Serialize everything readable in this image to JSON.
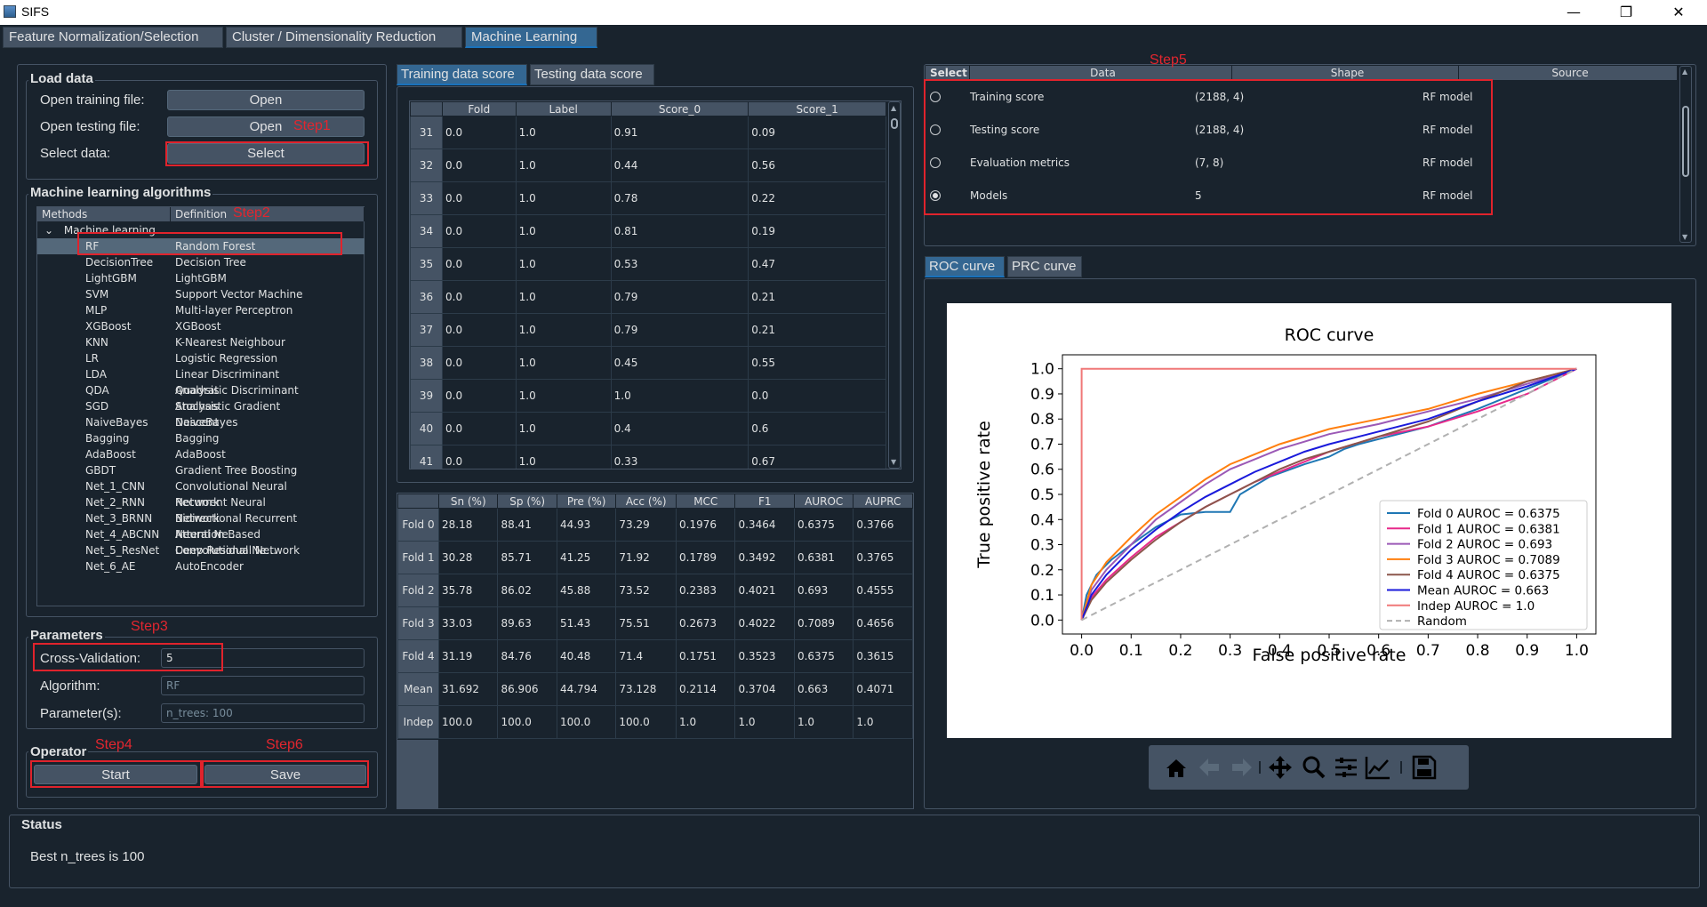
{
  "window": {
    "title": "SIFS",
    "minimize": "—",
    "restore": "❐",
    "close": "✕"
  },
  "tabs": [
    "Feature Normalization/Selection",
    "Cluster / Dimensionality Reduction",
    "Machine Learning"
  ],
  "load": {
    "title": "Load data",
    "train_label": "Open training file:",
    "test_label": "Open testing file:",
    "select_label": "Select data:",
    "open1": "Open",
    "open2": "Open",
    "select": "Select"
  },
  "steps": {
    "s1": "Step1",
    "s2": "Step2",
    "s3": "Step3",
    "s4": "Step4",
    "s5": "Step5",
    "s6": "Step6"
  },
  "ml": {
    "title": "Machine learning algorithms",
    "col1": "Methods",
    "col2": "Definition",
    "root": "Machine learning ...",
    "items": [
      [
        "RF",
        "Random Forest"
      ],
      [
        "DecisionTree",
        "Decision Tree"
      ],
      [
        "LightGBM",
        "LightGBM"
      ],
      [
        "SVM",
        "Support Vector Machine"
      ],
      [
        "MLP",
        "Multi-layer Perceptron"
      ],
      [
        "XGBoost",
        "XGBoost"
      ],
      [
        "KNN",
        "K-Nearest Neighbour"
      ],
      [
        "LR",
        "Logistic Regression"
      ],
      [
        "LDA",
        "Linear Discriminant Analysis"
      ],
      [
        "QDA",
        "Quadratic Discriminant Analysis"
      ],
      [
        "SGD",
        "Stochastic Gradient Descent"
      ],
      [
        "NaiveBayes",
        "NaiveBayes"
      ],
      [
        "Bagging",
        "Bagging"
      ],
      [
        "AdaBoost",
        "AdaBoost"
      ],
      [
        "GBDT",
        "Gradient Tree Boosting"
      ],
      [
        "Net_1_CNN",
        "Convolutional Neural Network"
      ],
      [
        "Net_2_RNN",
        "Recurrent Neural Network"
      ],
      [
        "Net_3_BRNN",
        "Bidirectional Recurrent Neural Ne..."
      ],
      [
        "Net_4_ABCNN",
        "Attention Based Convolutional Ne..."
      ],
      [
        "Net_5_ResNet",
        "Deep Residual Network"
      ],
      [
        "Net_6_AE",
        "AutoEncoder"
      ]
    ]
  },
  "params": {
    "title": "Parameters",
    "cv_label": "Cross-Validation:",
    "cv_value": "5",
    "alg_label": "Algorithm:",
    "alg_value": "RF",
    "par_label": "Parameter(s):",
    "par_value": "n_trees: 100"
  },
  "operator": {
    "title": "Operator",
    "start": "Start",
    "save": "Save"
  },
  "status": {
    "title": "Status",
    "text": "Best n_trees is 100"
  },
  "score_tabs": [
    "Training data score",
    "Testing data score"
  ],
  "score_table": {
    "headers": [
      "Fold",
      "Label",
      "Score_0",
      "Score_1"
    ],
    "rows": [
      [
        "31",
        "0.0",
        "1.0",
        "0.91",
        "0.09"
      ],
      [
        "32",
        "0.0",
        "1.0",
        "0.44",
        "0.56"
      ],
      [
        "33",
        "0.0",
        "1.0",
        "0.78",
        "0.22"
      ],
      [
        "34",
        "0.0",
        "1.0",
        "0.81",
        "0.19"
      ],
      [
        "35",
        "0.0",
        "1.0",
        "0.53",
        "0.47"
      ],
      [
        "36",
        "0.0",
        "1.0",
        "0.79",
        "0.21"
      ],
      [
        "37",
        "0.0",
        "1.0",
        "0.79",
        "0.21"
      ],
      [
        "38",
        "0.0",
        "1.0",
        "0.45",
        "0.55"
      ],
      [
        "39",
        "0.0",
        "1.0",
        "1.0",
        "0.0"
      ],
      [
        "40",
        "0.0",
        "1.0",
        "0.4",
        "0.6"
      ],
      [
        "41",
        "0.0",
        "1.0",
        "0.33",
        "0.67"
      ]
    ]
  },
  "metrics": {
    "headers": [
      "Sn (%)",
      "Sp (%)",
      "Pre (%)",
      "Acc (%)",
      "MCC",
      "F1",
      "AUROC",
      "AUPRC"
    ],
    "rows": [
      [
        "Fold 0",
        "28.18",
        "88.41",
        "44.93",
        "73.29",
        "0.1976",
        "0.3464",
        "0.6375",
        "0.3766"
      ],
      [
        "Fold 1",
        "30.28",
        "85.71",
        "41.25",
        "71.92",
        "0.1789",
        "0.3492",
        "0.6381",
        "0.3765"
      ],
      [
        "Fold 2",
        "35.78",
        "86.02",
        "45.88",
        "73.52",
        "0.2383",
        "0.4021",
        "0.693",
        "0.4555"
      ],
      [
        "Fold 3",
        "33.03",
        "89.63",
        "51.43",
        "75.51",
        "0.2673",
        "0.4022",
        "0.7089",
        "0.4656"
      ],
      [
        "Fold 4",
        "31.19",
        "84.76",
        "40.48",
        "71.4",
        "0.1751",
        "0.3523",
        "0.6375",
        "0.3615"
      ],
      [
        "Mean",
        "31.692",
        "86.906",
        "44.794",
        "73.128",
        "0.2114",
        "0.3704",
        "0.663",
        "0.4071"
      ],
      [
        "Indep",
        "100.0",
        "100.0",
        "100.0",
        "100.0",
        "1.0",
        "1.0",
        "1.0",
        "1.0"
      ]
    ]
  },
  "data_table": {
    "headers": [
      "Select",
      "Data",
      "Shape",
      "Source"
    ],
    "rows": [
      {
        "selected": false,
        "data": "Training score",
        "shape": "(2188, 4)",
        "source": "RF model"
      },
      {
        "selected": false,
        "data": "Testing score",
        "shape": "(2188, 4)",
        "source": "RF model"
      },
      {
        "selected": false,
        "data": "Evaluation metrics",
        "shape": "(7, 8)",
        "source": "RF model"
      },
      {
        "selected": true,
        "data": "Models",
        "shape": "5",
        "source": "RF model"
      }
    ]
  },
  "curve_tabs": [
    "ROC curve",
    "PRC curve"
  ],
  "chart_data": {
    "type": "line",
    "title": "ROC curve",
    "xlabel": "False positive rate",
    "ylabel": "True positive rate",
    "xlim": [
      0,
      1
    ],
    "ylim": [
      0,
      1
    ],
    "xticks": [
      "0.0",
      "0.1",
      "0.2",
      "0.3",
      "0.4",
      "0.5",
      "0.6",
      "0.7",
      "0.8",
      "0.9",
      "1.0"
    ],
    "yticks": [
      "0.0",
      "0.1",
      "0.2",
      "0.3",
      "0.4",
      "0.5",
      "0.6",
      "0.7",
      "0.8",
      "0.9",
      "1.0"
    ],
    "legend_position": "lower-right",
    "series": [
      {
        "name": "Fold 0 AUROC = 0.6375",
        "color": "#1f77b4",
        "points": [
          [
            0,
            0
          ],
          [
            0.01,
            0.1
          ],
          [
            0.03,
            0.18
          ],
          [
            0.06,
            0.24
          ],
          [
            0.1,
            0.3
          ],
          [
            0.15,
            0.37
          ],
          [
            0.2,
            0.42
          ],
          [
            0.25,
            0.43
          ],
          [
            0.3,
            0.43
          ],
          [
            0.32,
            0.5
          ],
          [
            0.38,
            0.57
          ],
          [
            0.45,
            0.62
          ],
          [
            0.5,
            0.65
          ],
          [
            0.53,
            0.68
          ],
          [
            0.56,
            0.7
          ],
          [
            0.6,
            0.72
          ],
          [
            0.7,
            0.77
          ],
          [
            0.8,
            0.84
          ],
          [
            0.9,
            0.92
          ],
          [
            1,
            1
          ]
        ]
      },
      {
        "name": "Fold 1 AUROC = 0.6381",
        "color": "#e7298a",
        "points": [
          [
            0,
            0
          ],
          [
            0.02,
            0.09
          ],
          [
            0.05,
            0.16
          ],
          [
            0.1,
            0.25
          ],
          [
            0.15,
            0.33
          ],
          [
            0.2,
            0.39
          ],
          [
            0.25,
            0.45
          ],
          [
            0.3,
            0.5
          ],
          [
            0.35,
            0.55
          ],
          [
            0.4,
            0.59
          ],
          [
            0.45,
            0.63
          ],
          [
            0.5,
            0.67
          ],
          [
            0.55,
            0.7
          ],
          [
            0.6,
            0.73
          ],
          [
            0.7,
            0.77
          ],
          [
            0.8,
            0.83
          ],
          [
            0.9,
            0.9
          ],
          [
            1,
            1
          ]
        ]
      },
      {
        "name": "Fold 2 AUROC = 0.693",
        "color": "#9b59b6",
        "points": [
          [
            0,
            0
          ],
          [
            0.02,
            0.12
          ],
          [
            0.05,
            0.2
          ],
          [
            0.1,
            0.3
          ],
          [
            0.15,
            0.4
          ],
          [
            0.2,
            0.47
          ],
          [
            0.25,
            0.54
          ],
          [
            0.3,
            0.6
          ],
          [
            0.35,
            0.64
          ],
          [
            0.4,
            0.68
          ],
          [
            0.45,
            0.71
          ],
          [
            0.5,
            0.74
          ],
          [
            0.6,
            0.78
          ],
          [
            0.7,
            0.83
          ],
          [
            0.8,
            0.88
          ],
          [
            0.9,
            0.94
          ],
          [
            1,
            1
          ]
        ]
      },
      {
        "name": "Fold 3 AUROC = 0.7089",
        "color": "#ff7f0e",
        "points": [
          [
            0,
            0
          ],
          [
            0.02,
            0.14
          ],
          [
            0.05,
            0.23
          ],
          [
            0.1,
            0.33
          ],
          [
            0.15,
            0.42
          ],
          [
            0.2,
            0.49
          ],
          [
            0.25,
            0.56
          ],
          [
            0.3,
            0.62
          ],
          [
            0.35,
            0.66
          ],
          [
            0.4,
            0.7
          ],
          [
            0.45,
            0.73
          ],
          [
            0.5,
            0.76
          ],
          [
            0.6,
            0.8
          ],
          [
            0.7,
            0.84
          ],
          [
            0.8,
            0.9
          ],
          [
            0.9,
            0.95
          ],
          [
            1,
            1
          ]
        ]
      },
      {
        "name": "Fold 4 AUROC = 0.6375",
        "color": "#8c564b",
        "points": [
          [
            0,
            0
          ],
          [
            0.02,
            0.08
          ],
          [
            0.05,
            0.15
          ],
          [
            0.1,
            0.24
          ],
          [
            0.15,
            0.32
          ],
          [
            0.2,
            0.39
          ],
          [
            0.25,
            0.45
          ],
          [
            0.3,
            0.5
          ],
          [
            0.35,
            0.55
          ],
          [
            0.4,
            0.6
          ],
          [
            0.45,
            0.64
          ],
          [
            0.5,
            0.67
          ],
          [
            0.6,
            0.73
          ],
          [
            0.7,
            0.79
          ],
          [
            0.8,
            0.87
          ],
          [
            0.9,
            0.95
          ],
          [
            1,
            1
          ]
        ]
      },
      {
        "name": "Mean AUROC = 0.663",
        "color": "#1a1adb",
        "points": [
          [
            0,
            0
          ],
          [
            0.02,
            0.1
          ],
          [
            0.05,
            0.18
          ],
          [
            0.1,
            0.28
          ],
          [
            0.15,
            0.36
          ],
          [
            0.2,
            0.43
          ],
          [
            0.25,
            0.49
          ],
          [
            0.3,
            0.54
          ],
          [
            0.35,
            0.59
          ],
          [
            0.4,
            0.63
          ],
          [
            0.45,
            0.67
          ],
          [
            0.5,
            0.7
          ],
          [
            0.6,
            0.75
          ],
          [
            0.7,
            0.8
          ],
          [
            0.8,
            0.87
          ],
          [
            0.9,
            0.93
          ],
          [
            1,
            1
          ]
        ]
      },
      {
        "name": "Indep AUROC = 1.0",
        "color": "#f07878",
        "points": [
          [
            0,
            0
          ],
          [
            0,
            1
          ],
          [
            1,
            1
          ]
        ]
      },
      {
        "name": "Random",
        "color": "#b0b0b0",
        "dashed": true,
        "points": [
          [
            0,
            0
          ],
          [
            1,
            1
          ]
        ]
      }
    ]
  },
  "toolbar_icons": [
    "home-icon",
    "back-arrow-icon",
    "forward-arrow-icon",
    "pan-icon",
    "zoom-icon",
    "configure-subplots-icon",
    "edit-axis-icon",
    "save-figure-icon"
  ]
}
